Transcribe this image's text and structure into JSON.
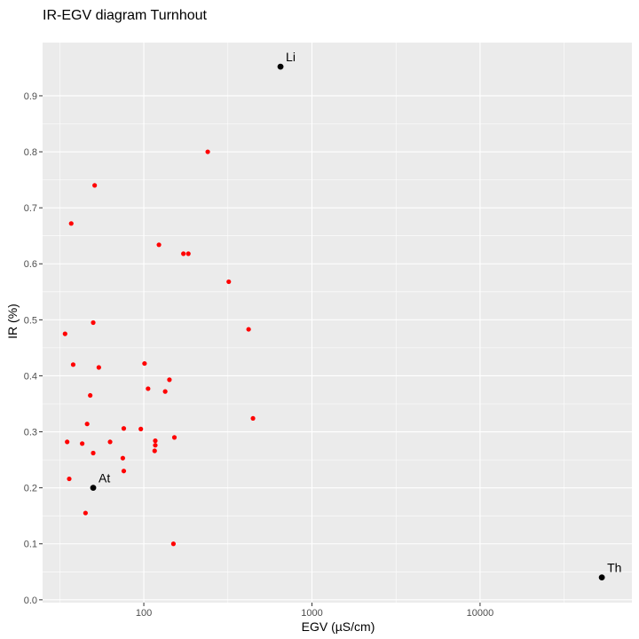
{
  "chart_data": {
    "type": "scatter",
    "title": "IR-EGV diagram Turnhout",
    "xlabel": "EGV (µS/cm)",
    "ylabel": "IR (%)",
    "x_scale": "log10",
    "xlim": [
      25,
      80000
    ],
    "ylim": [
      -0.005,
      0.995
    ],
    "x_ticks": [
      {
        "value": 100,
        "label": "100"
      },
      {
        "value": 1000,
        "label": "1000"
      },
      {
        "value": 10000,
        "label": "10000"
      }
    ],
    "y_ticks": [
      {
        "value": 0.0,
        "label": "0.0"
      },
      {
        "value": 0.1,
        "label": "0.1"
      },
      {
        "value": 0.2,
        "label": "0.2"
      },
      {
        "value": 0.3,
        "label": "0.3"
      },
      {
        "value": 0.4,
        "label": "0.4"
      },
      {
        "value": 0.5,
        "label": "0.5"
      },
      {
        "value": 0.6,
        "label": "0.6"
      },
      {
        "value": 0.7,
        "label": "0.7"
      },
      {
        "value": 0.8,
        "label": "0.8"
      },
      {
        "value": 0.9,
        "label": "0.9"
      }
    ],
    "grid": true,
    "legend": "none",
    "background_color": "#ebebeb",
    "grid_color": "#ffffff",
    "samples": {
      "color": "#ff0000",
      "points": [
        {
          "x": 240,
          "y": 0.8
        },
        {
          "x": 51,
          "y": 0.74
        },
        {
          "x": 37,
          "y": 0.672
        },
        {
          "x": 123,
          "y": 0.634
        },
        {
          "x": 172,
          "y": 0.618
        },
        {
          "x": 184,
          "y": 0.618
        },
        {
          "x": 320,
          "y": 0.568
        },
        {
          "x": 50,
          "y": 0.495
        },
        {
          "x": 420,
          "y": 0.483
        },
        {
          "x": 34,
          "y": 0.475
        },
        {
          "x": 38,
          "y": 0.42
        },
        {
          "x": 101,
          "y": 0.422
        },
        {
          "x": 54,
          "y": 0.415
        },
        {
          "x": 106,
          "y": 0.377
        },
        {
          "x": 134,
          "y": 0.372
        },
        {
          "x": 142,
          "y": 0.393
        },
        {
          "x": 48,
          "y": 0.365
        },
        {
          "x": 446,
          "y": 0.324
        },
        {
          "x": 46,
          "y": 0.314
        },
        {
          "x": 76,
          "y": 0.306
        },
        {
          "x": 96,
          "y": 0.305
        },
        {
          "x": 152,
          "y": 0.29
        },
        {
          "x": 117,
          "y": 0.284
        },
        {
          "x": 35,
          "y": 0.282
        },
        {
          "x": 63,
          "y": 0.282
        },
        {
          "x": 43,
          "y": 0.279
        },
        {
          "x": 117,
          "y": 0.276
        },
        {
          "x": 116,
          "y": 0.266
        },
        {
          "x": 50,
          "y": 0.262
        },
        {
          "x": 75,
          "y": 0.253
        },
        {
          "x": 76,
          "y": 0.23
        },
        {
          "x": 36,
          "y": 0.216
        },
        {
          "x": 45,
          "y": 0.155
        },
        {
          "x": 150,
          "y": 0.1
        }
      ]
    },
    "reference_points": {
      "color": "#000000",
      "points": [
        {
          "label": "Li",
          "x": 650,
          "y": 0.952
        },
        {
          "label": "At",
          "x": 50,
          "y": 0.2
        },
        {
          "label": "Th",
          "x": 53000,
          "y": 0.04
        }
      ]
    }
  }
}
